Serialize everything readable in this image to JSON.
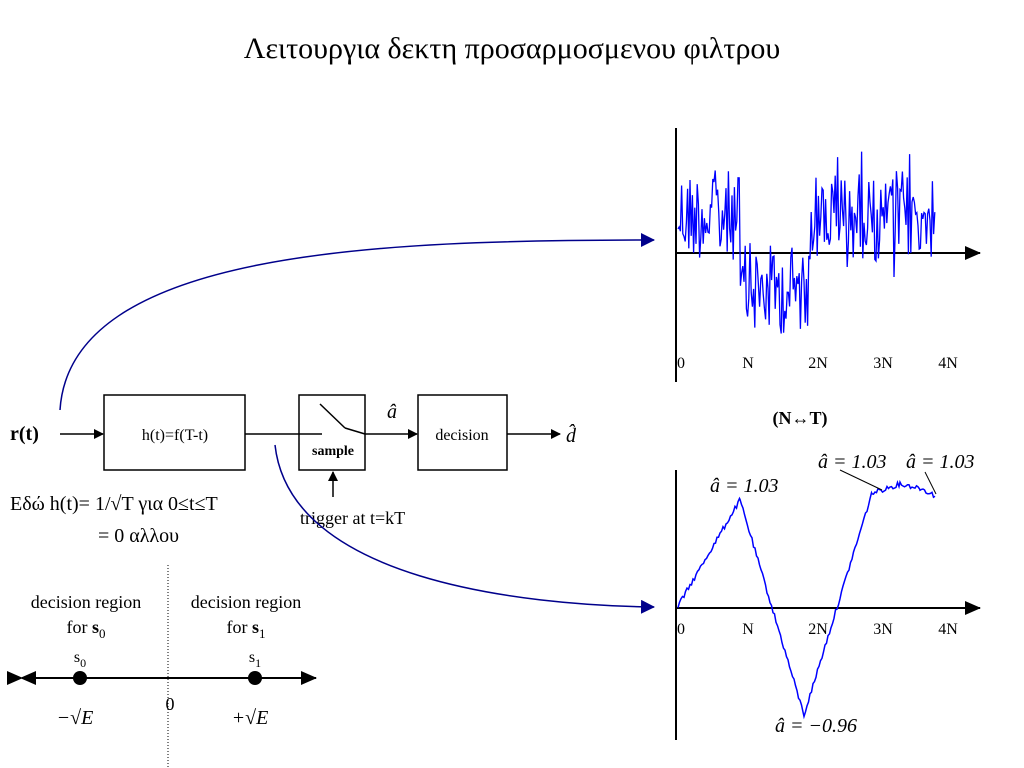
{
  "title": "Λειτουργια δεκτη προσαρμοσμενου φιλτρου",
  "block_diagram": {
    "input": "r(t)",
    "filter": "h(t)=f(T-t)",
    "sampler": "sample",
    "sample_output": "â",
    "decision": "decision",
    "output": "d̂",
    "trigger": "trigger at t=kT"
  },
  "note": [
    "Εδώ h(t)= 1/√T για 0≤t≤T",
    "= 0 αλλου"
  ],
  "received_plot": {
    "x_labels": [
      "0",
      "N",
      "2N",
      "3N",
      "4N"
    ]
  },
  "mapping": "(N↔T)",
  "filter_output_plot": {
    "x_labels": [
      "0",
      "N",
      "2N",
      "3N",
      "4N"
    ],
    "annotations": [
      "â = 1.03",
      "â = 1.03",
      "â = 1.03",
      "â = −0.96"
    ]
  },
  "decision_regions": {
    "regions": [
      {
        "title": "decision region",
        "for": "for",
        "symbol": "s",
        "index": "0"
      },
      {
        "title": "decision region",
        "for": "for",
        "symbol": "s",
        "index": "1"
      }
    ],
    "points": [
      {
        "symbol": "s",
        "index": "0",
        "value": "−√E"
      },
      {
        "symbol": "s",
        "index": "1",
        "value": "+√E"
      }
    ],
    "origin": "0"
  }
}
